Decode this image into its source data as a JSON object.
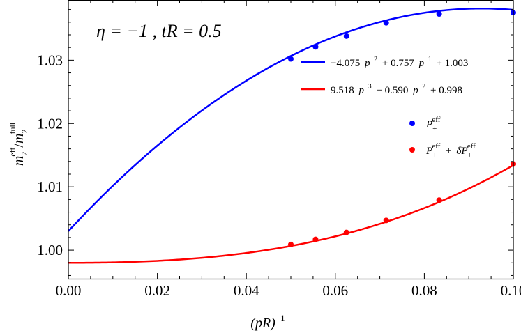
{
  "chart_data": {
    "type": "line",
    "annotation": "η = −1 , tR = 0.5",
    "xlabel": "(pR)",
    "xlabel_sup": "−1",
    "ylabel_parts": {
      "m1": "m",
      "sub1": "2",
      "sup1": "eff",
      "slash": "/",
      "m2": "m",
      "sub2": "2",
      "sup2": "full"
    },
    "xlim": [
      0.0,
      0.1
    ],
    "ylim": [
      0.9955,
      1.0395
    ],
    "x_ticks": [
      0.0,
      0.02,
      0.04,
      0.06,
      0.08,
      0.1
    ],
    "x_tick_labels": [
      "0.00",
      "0.02",
      "0.04",
      "0.06",
      "0.08",
      "0.10"
    ],
    "y_ticks": [
      1.0,
      1.01,
      1.02,
      1.03
    ],
    "y_tick_labels": [
      "1.00",
      "1.01",
      "1.02",
      "1.03"
    ],
    "grid": false,
    "legend_position": "top-right",
    "series": [
      {
        "kind": "fit",
        "name": "−4.075 p⁻² + 0.757 p⁻¹ + 1.003",
        "color": "#0000ff",
        "coefficients": {
          "a": -4.075,
          "b": 0.757,
          "c": 1.003
        },
        "x_range": [
          0.0,
          0.1
        ]
      },
      {
        "kind": "fit",
        "name": "9.518 p⁻³ + 0.590 p⁻² + 0.998",
        "color": "#ff0000",
        "coefficients": {
          "a3": 9.518,
          "a2": 0.59,
          "c": 0.998
        },
        "x_range": [
          0.0,
          0.1
        ]
      },
      {
        "kind": "points",
        "name": "P₊eff",
        "legend_base": "P",
        "legend_sub": "+",
        "legend_sup": "eff",
        "color": "#0000ff",
        "x": [
          0.05,
          0.05556,
          0.0625,
          0.07143,
          0.08333,
          0.1
        ],
        "y": [
          1.0302,
          1.0321,
          1.0338,
          1.0359,
          1.0373,
          1.0375
        ]
      },
      {
        "kind": "points",
        "name": "P₊eff + δP₊eff",
        "legend_base": "P",
        "legend_sub": "+",
        "legend_sup": "eff",
        "legend_plus": "+",
        "legend_delta": "δP",
        "legend_sub2": "+",
        "legend_sup2": "eff",
        "color": "#ff0000",
        "x": [
          0.05,
          0.05556,
          0.0625,
          0.07143,
          0.08333,
          0.1
        ],
        "y": [
          1.0009,
          1.0017,
          1.0028,
          1.0047,
          1.0079,
          1.0136
        ]
      }
    ],
    "legend": {
      "fit_blue": [
        "−4.075",
        "p",
        "−2",
        "+ 0.757",
        "p",
        "−1",
        "+ 1.003"
      ],
      "fit_red": [
        "9.518",
        "p",
        "−3",
        "+ 0.590",
        "p",
        "−2",
        "+ 0.998"
      ]
    }
  }
}
